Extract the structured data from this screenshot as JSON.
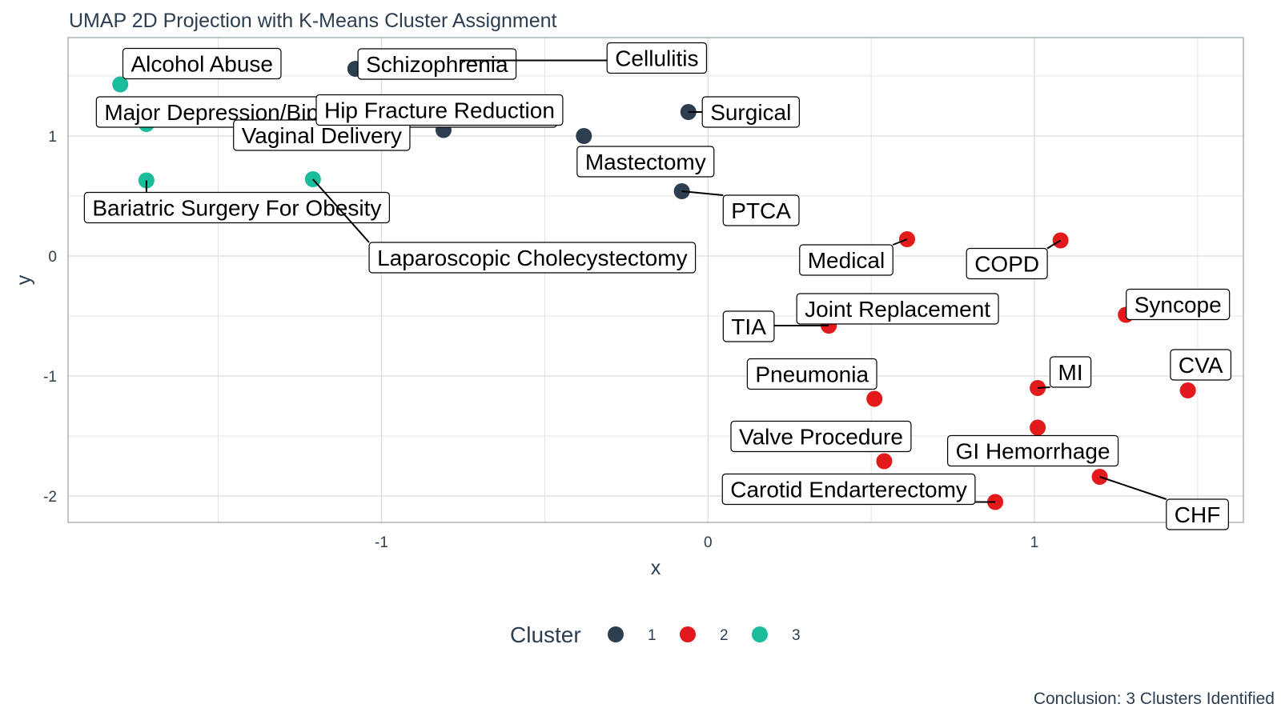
{
  "chart_data": {
    "type": "scatter",
    "title": "UMAP 2D Projection with K-Means Cluster Assignment",
    "caption": "Conclusion: 3 Clusters Identified",
    "xlabel": "x",
    "ylabel": "y",
    "xlim": [
      -1.96,
      1.64
    ],
    "ylim": [
      -2.22,
      1.82
    ],
    "x_ticks": [
      -1,
      0,
      1
    ],
    "y_ticks": [
      -2,
      -1,
      0,
      1
    ],
    "grid": true,
    "legend": {
      "title": "Cluster",
      "position": "bottom",
      "entries": [
        {
          "label": "1",
          "color": "#2c3e50"
        },
        {
          "label": "2",
          "color": "#e31a1c"
        },
        {
          "label": "3",
          "color": "#1abc9c"
        }
      ]
    },
    "points": [
      {
        "label": "Alcohol Abuse",
        "x": -1.8,
        "y": 1.43,
        "cluster": 3
      },
      {
        "label": "Major Depression/Bipolar Affective Disorders",
        "x": -1.72,
        "y": 1.1,
        "cluster": 3
      },
      {
        "label": "Vaginal Delivery",
        "x": -1.34,
        "y": 1.0,
        "cluster": 3
      },
      {
        "label": "Bariatric Surgery For Obesity",
        "x": -1.72,
        "y": 0.63,
        "cluster": 3
      },
      {
        "label": "Laparoscopic Cholecystectomy",
        "x": -1.21,
        "y": 0.64,
        "cluster": 3
      },
      {
        "label": "Schizophrenia",
        "x": -1.08,
        "y": 1.56,
        "cluster": 1
      },
      {
        "label": "Cellulitis",
        "x": -0.76,
        "y": 1.63,
        "cluster": 1
      },
      {
        "label": "Hip Fracture Reduction",
        "x": -0.81,
        "y": 1.05,
        "cluster": 1
      },
      {
        "label": "Mastectomy",
        "x": -0.38,
        "y": 1.0,
        "cluster": 1
      },
      {
        "label": "Surgical",
        "x": -0.06,
        "y": 1.2,
        "cluster": 1
      },
      {
        "label": "PTCA",
        "x": -0.08,
        "y": 0.54,
        "cluster": 1
      },
      {
        "label": "Medical",
        "x": 0.61,
        "y": 0.14,
        "cluster": 2
      },
      {
        "label": "COPD",
        "x": 1.08,
        "y": 0.13,
        "cluster": 2
      },
      {
        "label": "Joint Replacement",
        "x": 0.37,
        "y": -0.58,
        "cluster": 2
      },
      {
        "label": "TIA",
        "x": 0.37,
        "y": -0.58,
        "cluster": 2
      },
      {
        "label": "Syncope",
        "x": 1.28,
        "y": -0.49,
        "cluster": 2
      },
      {
        "label": "Pneumonia",
        "x": 0.51,
        "y": -1.19,
        "cluster": 2
      },
      {
        "label": "MI",
        "x": 1.01,
        "y": -1.1,
        "cluster": 2
      },
      {
        "label": "CVA",
        "x": 1.47,
        "y": -1.12,
        "cluster": 2
      },
      {
        "label": "Valve Procedure",
        "x": 0.54,
        "y": -1.71,
        "cluster": 2
      },
      {
        "label": "GI Hemorrhage",
        "x": 1.01,
        "y": -1.43,
        "cluster": 2
      },
      {
        "label": "Carotid Endarterectomy",
        "x": 0.88,
        "y": -2.05,
        "cluster": 2
      },
      {
        "label": "CHF",
        "x": 1.2,
        "y": -1.84,
        "cluster": 2
      }
    ]
  }
}
